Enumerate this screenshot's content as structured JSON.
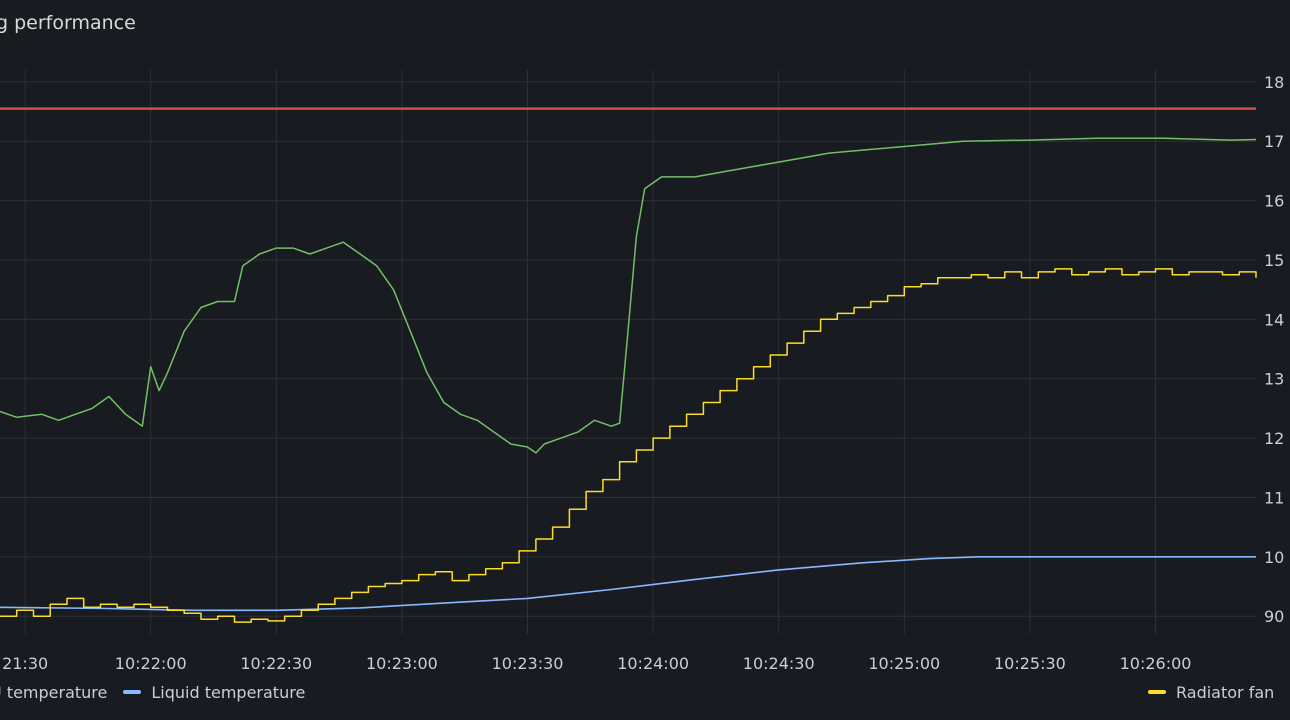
{
  "panel": {
    "title": "g performance"
  },
  "colors": {
    "threshold": "#d44a4a",
    "gpu_temperature": "#73bf69",
    "liquid_temperature": "#8ab8ff",
    "radiator_fan": "#fade2a",
    "grid": "#2c3038"
  },
  "legend": {
    "items": [
      {
        "label": "U temperature",
        "color": "#73bf69"
      },
      {
        "label": "Liquid temperature",
        "color": "#8ab8ff"
      }
    ],
    "right": {
      "label": "Radiator fan",
      "color": "#fade2a"
    }
  },
  "chart_data": {
    "type": "line",
    "title": "g performance",
    "x_tick_labels": [
      "21:30",
      "10:22:00",
      "10:22:30",
      "10:23:00",
      "10:23:30",
      "10:24:00",
      "10:24:30",
      "10:25:00",
      "10:25:30",
      "10:26:00"
    ],
    "x_range_seconds": [
      -3,
      147
    ],
    "y_right_tick_labels": [
      "18",
      "17",
      "16",
      "15",
      "14",
      "13",
      "12",
      "11",
      "10",
      "90"
    ],
    "y_range": [
      87,
      182
    ],
    "grid": true,
    "legend_position": "bottom",
    "threshold": {
      "value": 175.5,
      "color": "#d44a4a"
    },
    "series": [
      {
        "name": "U temperature",
        "color": "#73bf69",
        "points": [
          [
            -3,
            124.5
          ],
          [
            -1,
            123.5
          ],
          [
            2,
            124
          ],
          [
            4,
            123
          ],
          [
            6,
            124
          ],
          [
            8,
            125
          ],
          [
            10,
            127
          ],
          [
            12,
            124
          ],
          [
            14,
            122
          ],
          [
            15,
            132
          ],
          [
            16,
            128
          ],
          [
            17,
            131
          ],
          [
            19,
            138
          ],
          [
            21,
            142
          ],
          [
            23,
            143
          ],
          [
            25,
            143
          ],
          [
            26,
            149
          ],
          [
            28,
            151
          ],
          [
            30,
            152
          ],
          [
            32,
            152
          ],
          [
            34,
            151
          ],
          [
            36,
            152
          ],
          [
            38,
            153
          ],
          [
            40,
            151
          ],
          [
            42,
            149
          ],
          [
            44,
            145
          ],
          [
            46,
            138
          ],
          [
            48,
            131
          ],
          [
            50,
            126
          ],
          [
            52,
            124
          ],
          [
            54,
            123
          ],
          [
            56,
            121
          ],
          [
            58,
            119
          ],
          [
            60,
            118.5
          ],
          [
            61,
            117.5
          ],
          [
            62,
            119
          ],
          [
            64,
            120
          ],
          [
            66,
            121
          ],
          [
            68,
            123
          ],
          [
            70,
            122
          ],
          [
            71,
            122.5
          ],
          [
            72,
            138
          ],
          [
            73,
            154
          ],
          [
            74,
            162
          ],
          [
            76,
            164
          ],
          [
            80,
            164
          ],
          [
            84,
            165
          ],
          [
            88,
            166
          ],
          [
            92,
            167
          ],
          [
            96,
            168
          ],
          [
            100,
            168.5
          ],
          [
            104,
            169
          ],
          [
            108,
            169.5
          ],
          [
            112,
            170
          ],
          [
            120,
            170.2
          ],
          [
            128,
            170.5
          ],
          [
            136,
            170.5
          ],
          [
            144,
            170.2
          ],
          [
            147,
            170.3
          ]
        ]
      },
      {
        "name": "Liquid temperature",
        "color": "#8ab8ff",
        "points": [
          [
            -3,
            91.5
          ],
          [
            10,
            91.3
          ],
          [
            20,
            91
          ],
          [
            30,
            91
          ],
          [
            40,
            91.4
          ],
          [
            50,
            92.2
          ],
          [
            60,
            93
          ],
          [
            70,
            94.5
          ],
          [
            80,
            96.2
          ],
          [
            90,
            97.8
          ],
          [
            100,
            99
          ],
          [
            108,
            99.7
          ],
          [
            114,
            100
          ],
          [
            125,
            100
          ],
          [
            147,
            100
          ]
        ]
      },
      {
        "name": "Radiator fan",
        "color": "#fade2a",
        "points": [
          [
            -3,
            90
          ],
          [
            -1,
            91
          ],
          [
            1,
            90
          ],
          [
            3,
            92
          ],
          [
            5,
            93
          ],
          [
            7,
            91.5
          ],
          [
            9,
            92
          ],
          [
            11,
            91.5
          ],
          [
            13,
            92
          ],
          [
            15,
            91.5
          ],
          [
            17,
            91
          ],
          [
            19,
            90.5
          ],
          [
            21,
            89.5
          ],
          [
            23,
            90
          ],
          [
            25,
            89
          ],
          [
            27,
            89.5
          ],
          [
            29,
            89.2
          ],
          [
            31,
            90
          ],
          [
            33,
            91
          ],
          [
            35,
            92
          ],
          [
            37,
            93
          ],
          [
            39,
            94
          ],
          [
            41,
            95
          ],
          [
            43,
            95.5
          ],
          [
            45,
            96
          ],
          [
            47,
            97
          ],
          [
            49,
            97.5
          ],
          [
            51,
            96
          ],
          [
            53,
            97
          ],
          [
            55,
            98
          ],
          [
            57,
            99
          ],
          [
            59,
            101
          ],
          [
            61,
            103
          ],
          [
            63,
            105
          ],
          [
            65,
            108
          ],
          [
            67,
            111
          ],
          [
            69,
            113
          ],
          [
            71,
            116
          ],
          [
            73,
            118
          ],
          [
            75,
            120
          ],
          [
            77,
            122
          ],
          [
            79,
            124
          ],
          [
            81,
            126
          ],
          [
            83,
            128
          ],
          [
            85,
            130
          ],
          [
            87,
            132
          ],
          [
            89,
            134
          ],
          [
            91,
            136
          ],
          [
            93,
            138
          ],
          [
            95,
            140
          ],
          [
            97,
            141
          ],
          [
            99,
            142
          ],
          [
            101,
            143
          ],
          [
            103,
            144
          ],
          [
            105,
            145.5
          ],
          [
            107,
            146
          ],
          [
            109,
            147
          ],
          [
            111,
            147
          ],
          [
            113,
            147.5
          ],
          [
            115,
            147
          ],
          [
            117,
            148
          ],
          [
            119,
            147
          ],
          [
            121,
            148
          ],
          [
            123,
            148.5
          ],
          [
            125,
            147.5
          ],
          [
            127,
            148
          ],
          [
            129,
            148.5
          ],
          [
            131,
            147.5
          ],
          [
            133,
            148
          ],
          [
            135,
            148.5
          ],
          [
            137,
            147.5
          ],
          [
            139,
            148
          ],
          [
            141,
            148
          ],
          [
            143,
            147.5
          ],
          [
            145,
            148
          ],
          [
            147,
            147
          ]
        ]
      }
    ]
  }
}
